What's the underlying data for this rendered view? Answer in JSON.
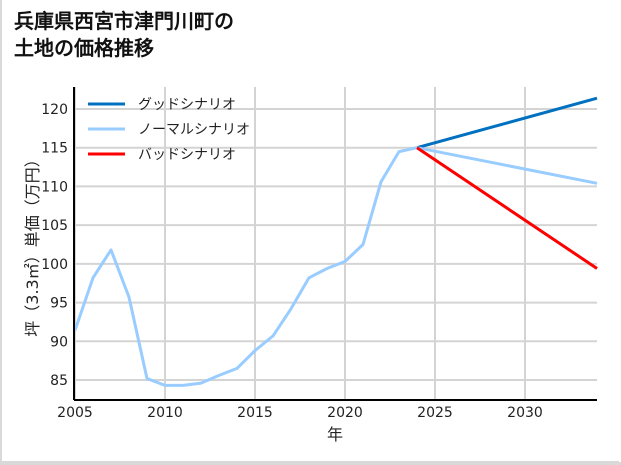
{
  "title_line1": "兵庫県西宮市津門川町の",
  "title_line2": "土地の価格推移",
  "chart_data": {
    "type": "line",
    "title": "兵庫県西宮市津門川町の土地の価格推移",
    "xlabel": "年",
    "ylabel": "坪（3.3㎡）単価（万円）",
    "xlim": [
      2005,
      2034
    ],
    "ylim": [
      82.5,
      123
    ],
    "x_ticks": [
      2005,
      2010,
      2015,
      2020,
      2025,
      2030
    ],
    "y_ticks": [
      85,
      90,
      95,
      100,
      105,
      110,
      115,
      120
    ],
    "grid": true,
    "legend_position": "upper left",
    "series": [
      {
        "name": "グッドシナリオ",
        "color": "#0070C0",
        "x": [
          2024,
          2034
        ],
        "values": [
          115.0,
          121.4
        ]
      },
      {
        "name": "ノーマルシナリオ",
        "color": "#99CCFF",
        "x": [
          2005,
          2006,
          2007,
          2008,
          2009,
          2010,
          2011,
          2012,
          2013,
          2014,
          2015,
          2016,
          2017,
          2018,
          2019,
          2020,
          2021,
          2022,
          2023,
          2024,
          2034
        ],
        "values": [
          91.4,
          98.2,
          101.8,
          95.7,
          85.2,
          84.3,
          84.3,
          84.6,
          85.6,
          86.5,
          88.8,
          90.7,
          94.2,
          98.2,
          99.4,
          100.3,
          102.5,
          110.6,
          114.5,
          115.0,
          110.4
        ]
      },
      {
        "name": "バッドシナリオ",
        "color": "#FF0000",
        "x": [
          2024,
          2034
        ],
        "values": [
          115.0,
          99.4
        ]
      }
    ]
  }
}
